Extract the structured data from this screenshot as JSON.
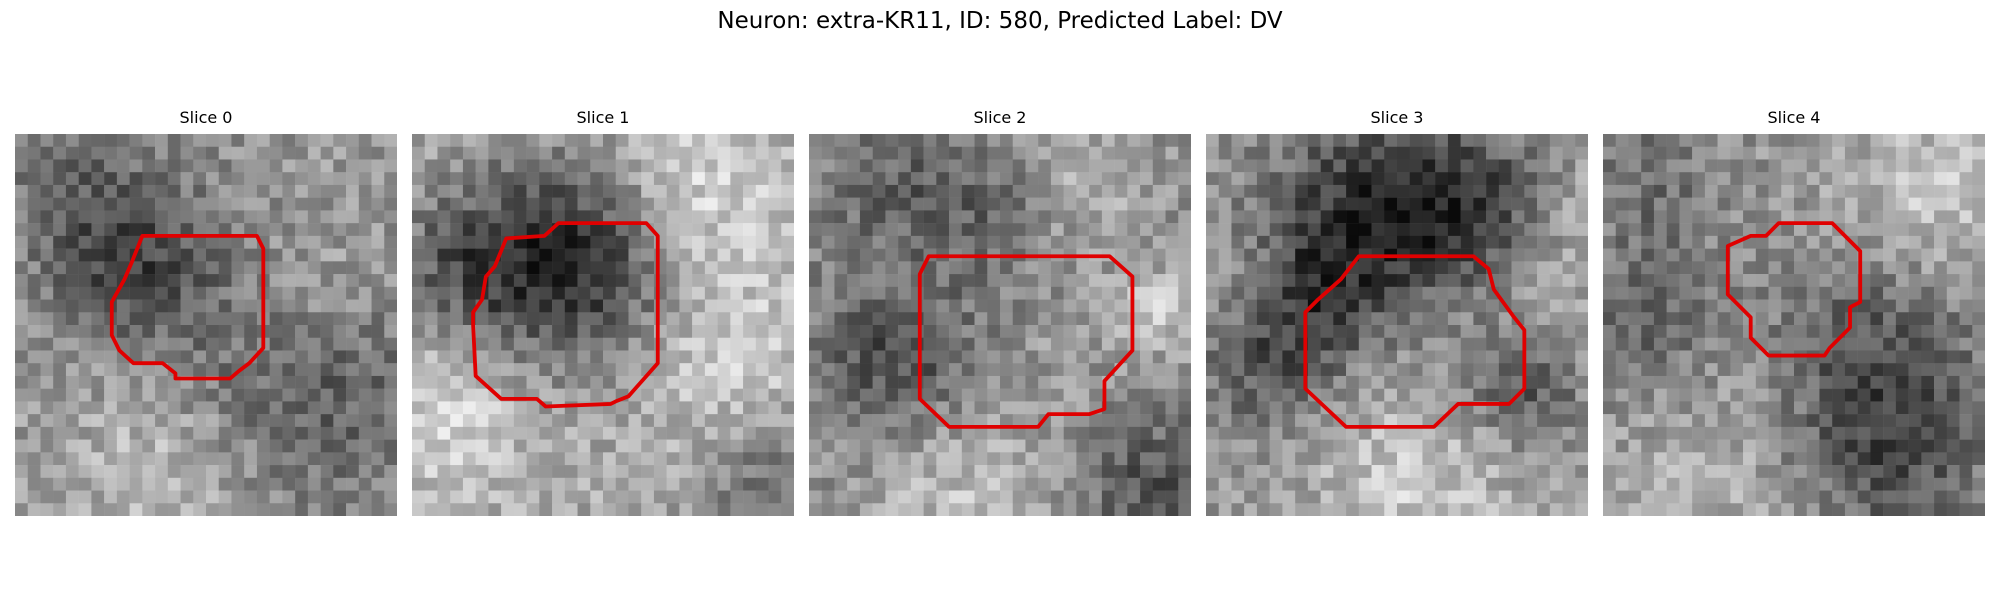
{
  "figure": {
    "title": "Neuron: extra-KR11, ID: 580, Predicted Label: DV"
  },
  "contour_color": "#e00000",
  "panels": [
    {
      "title": "Slice 0"
    },
    {
      "title": "Slice 1"
    },
    {
      "title": "Slice 2"
    },
    {
      "title": "Slice 3"
    },
    {
      "title": "Slice 4"
    }
  ]
}
